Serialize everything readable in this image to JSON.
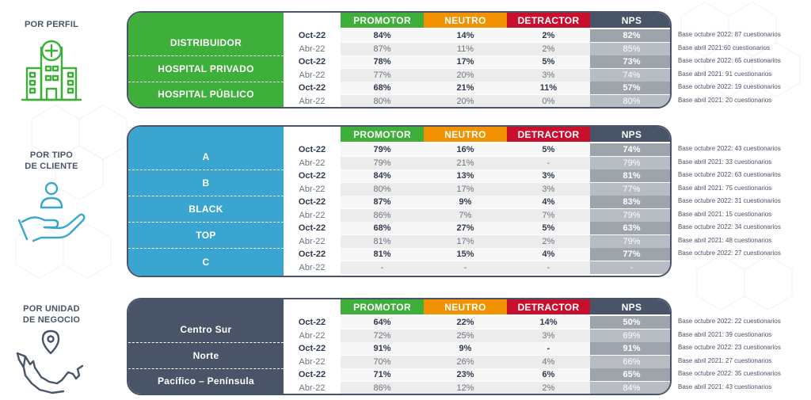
{
  "columns": {
    "promotor": "PROMOTOR",
    "neutro": "NEUTRO",
    "detractor": "DETRACTOR",
    "nps": "NPS"
  },
  "colors": {
    "promotor": "#3daf3a",
    "neutro": "#f39200",
    "detractor": "#c8102e",
    "nps": "#4a5468",
    "section_perfil": "#3daf3a",
    "section_cliente": "#3aa6d0",
    "section_negocio": "#4a5468",
    "panel_light": "#f7f7f7",
    "panel_mid": "#ececec",
    "nps_oct": "#9ea4ab",
    "nps_abr": "#b8bdc3"
  },
  "icons": [
    "hospital-icon",
    "hand-person-icon",
    "map-pin-icon"
  ],
  "chart_data": [
    {
      "type": "table",
      "title": "POR PERFIL",
      "columns": [
        "PROMOTOR",
        "NEUTRO",
        "DETRACTOR",
        "NPS"
      ],
      "groups": [
        {
          "name": "DISTRIBUIDOR",
          "rows": [
            {
              "period": "Oct-22",
              "values": [
                "84%",
                "14%",
                "2%",
                "82%"
              ]
            },
            {
              "period": "Abr-22",
              "values": [
                "87%",
                "11%",
                "2%",
                "85%"
              ]
            }
          ],
          "notes": [
            "Base octubre 2022: 87 cuestionarios",
            "Base abril 2021:60 cuestionarios"
          ]
        },
        {
          "name": "HOSPITAL PRIVADO",
          "rows": [
            {
              "period": "Oct-22",
              "values": [
                "78%",
                "17%",
                "5%",
                "73%"
              ]
            },
            {
              "period": "Abr-22",
              "values": [
                "77%",
                "20%",
                "3%",
                "74%"
              ]
            }
          ],
          "notes": [
            "Base octubre 2022: 65 cuestionarios",
            "Base abril 2021: 91 cuestionarios"
          ]
        },
        {
          "name": "HOSPITAL PÚBLICO",
          "rows": [
            {
              "period": "Oct-22",
              "values": [
                "68%",
                "21%",
                "11%",
                "57%"
              ]
            },
            {
              "period": "Abr-22",
              "values": [
                "80%",
                "20%",
                "0%",
                "80%"
              ]
            }
          ],
          "notes": [
            "Base octubre 2022: 19 cuestionarios",
            "Base abril 2021: 20 cuestionarios"
          ]
        }
      ]
    },
    {
      "type": "table",
      "title": "POR TIPO\nDE CLIENTE",
      "columns": [
        "PROMOTOR",
        "NEUTRO",
        "DETRACTOR",
        "NPS"
      ],
      "groups": [
        {
          "name": "A",
          "rows": [
            {
              "period": "Oct-22",
              "values": [
                "79%",
                "16%",
                "5%",
                "74%"
              ]
            },
            {
              "period": "Abr-22",
              "values": [
                "79%",
                "21%",
                "-",
                "79%"
              ]
            }
          ],
          "notes": [
            "Base octubre 2022: 43 cuestionarios",
            "Base abril 2021: 33 cuestionarios"
          ]
        },
        {
          "name": "B",
          "rows": [
            {
              "period": "Oct-22",
              "values": [
                "84%",
                "13%",
                "3%",
                "81%"
              ]
            },
            {
              "period": "Abr-22",
              "values": [
                "80%",
                "17%",
                "3%",
                "77%"
              ]
            }
          ],
          "notes": [
            "Base octubre 2022: 63 cuestionarios",
            "Base abril 2021: 75 cuestionarios"
          ]
        },
        {
          "name": "BLACK",
          "rows": [
            {
              "period": "Oct-22",
              "values": [
                "87%",
                "9%",
                "4%",
                "83%"
              ]
            },
            {
              "period": "Abr-22",
              "values": [
                "86%",
                "7%",
                "7%",
                "79%"
              ]
            }
          ],
          "notes": [
            "Base octubre 2022: 31 cuestionarios",
            "Base abril 2021: 15 cuestionarios"
          ]
        },
        {
          "name": "TOP",
          "rows": [
            {
              "period": "Oct-22",
              "values": [
                "68%",
                "27%",
                "5%",
                "63%"
              ]
            },
            {
              "period": "Abr-22",
              "values": [
                "81%",
                "17%",
                "2%",
                "79%"
              ]
            }
          ],
          "notes": [
            "Base octubre 2022: 34 cuestionarios",
            "Base abril 2021: 48 cuestionarios"
          ]
        },
        {
          "name": "C",
          "rows": [
            {
              "period": "Oct-22",
              "values": [
                "81%",
                "15%",
                "4%",
                "77%"
              ]
            },
            {
              "period": "Abr-22",
              "values": [
                "-",
                "-",
                "-",
                "-"
              ]
            }
          ],
          "notes": [
            "Base octubre 2022: 27 cuestionarios"
          ]
        }
      ]
    },
    {
      "type": "table",
      "title": "POR UNIDAD\nDE NEGOCIO",
      "columns": [
        "PROMOTOR",
        "NEUTRO",
        "DETRACTOR",
        "NPS"
      ],
      "groups": [
        {
          "name": "Centro Sur",
          "rows": [
            {
              "period": "Oct-22",
              "values": [
                "64%",
                "22%",
                "14%",
                "50%"
              ]
            },
            {
              "period": "Abr-22",
              "values": [
                "72%",
                "25%",
                "3%",
                "69%"
              ]
            }
          ],
          "notes": [
            "Base octubre 2022: 22 cuestionarios",
            "Base abril 2021: 39 cuestionarios"
          ]
        },
        {
          "name": "Norte",
          "rows": [
            {
              "period": "Oct-22",
              "values": [
                "91%",
                "9%",
                "-",
                "91%"
              ]
            },
            {
              "period": "Abr-22",
              "values": [
                "70%",
                "26%",
                "4%",
                "66%"
              ]
            }
          ],
          "notes": [
            "Base octubre 2022: 23 cuestionarios",
            "Base abril 2021: 27 cuestionarios"
          ]
        },
        {
          "name": "Pacífico – Península",
          "rows": [
            {
              "period": "Oct-22",
              "values": [
                "71%",
                "23%",
                "6%",
                "65%"
              ]
            },
            {
              "period": "Abr-22",
              "values": [
                "86%",
                "12%",
                "2%",
                "84%"
              ]
            }
          ],
          "notes": [
            "Base octubre 2022: 35 cuestionarios",
            "Base abril 2021: 43 cuestionarios"
          ]
        }
      ]
    }
  ]
}
